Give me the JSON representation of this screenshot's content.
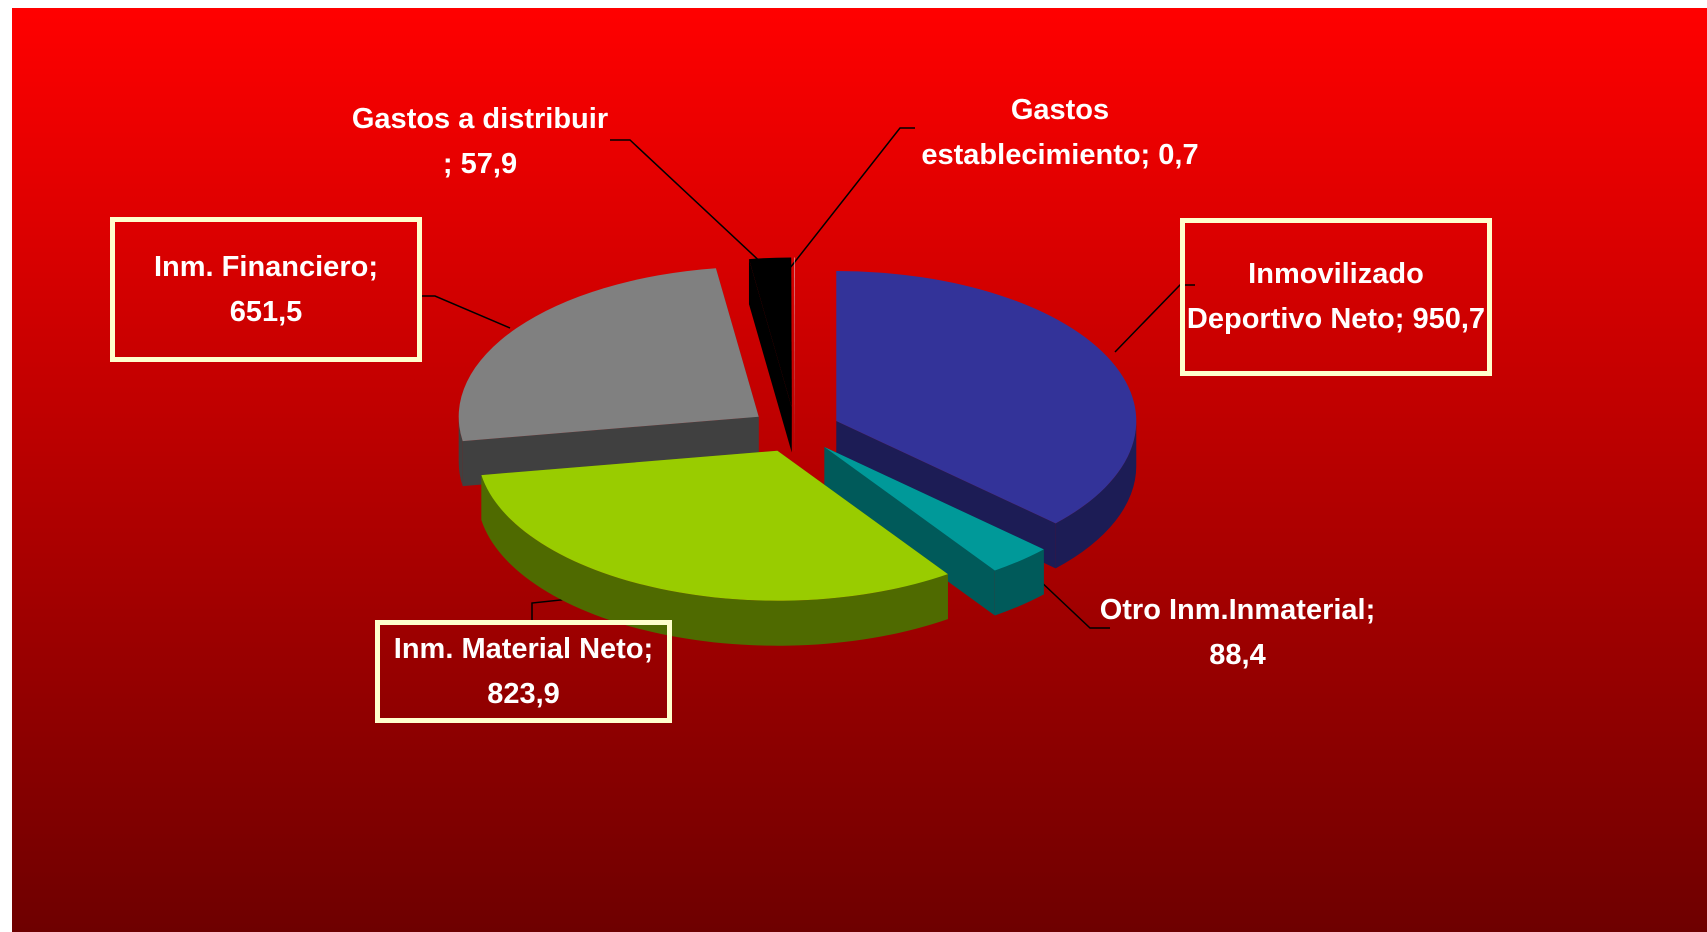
{
  "chart_data": {
    "type": "pie3d",
    "categories": [
      "Inmovilizado Deportivo Neto;",
      "Otro Inm.Inmaterial;",
      "Inm. Material Neto;",
      "Inm. Financiero;",
      "Gastos a distribuir ;",
      "Gastos establecimiento;"
    ],
    "values": [
      950.7,
      88.4,
      823.9,
      651.5,
      57.9,
      0.7
    ],
    "value_labels": [
      "950,7",
      "88,4",
      "823,9",
      "651,5",
      "57,9",
      "0,7"
    ],
    "colors": [
      "#333399",
      "#009999",
      "#99cc00",
      "#808080",
      "#000000",
      "#dddddd"
    ],
    "side_colors": [
      "#1c1c55",
      "#005a5a",
      "#4f6a00",
      "#404040",
      "#000000",
      "#999999"
    ]
  }
}
